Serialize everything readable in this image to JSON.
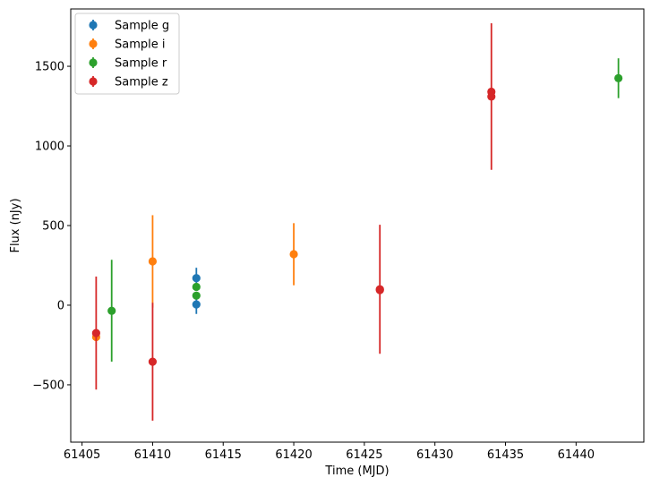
{
  "chart_data": {
    "type": "scatter",
    "xlabel": "Time (MJD)",
    "ylabel": "Flux (nJy)",
    "xlim": [
      61404.2,
      61444.8
    ],
    "ylim": [
      -860,
      1860
    ],
    "xticks": [
      61405,
      61410,
      61415,
      61420,
      61425,
      61430,
      61435,
      61440
    ],
    "xtick_labels": [
      "61405",
      "61410",
      "61415",
      "61420",
      "61425",
      "61430",
      "61435",
      "61440"
    ],
    "yticks": [
      -500,
      0,
      500,
      1000,
      1500
    ],
    "ytick_labels": [
      "−500",
      "0",
      "500",
      "1000",
      "1500"
    ],
    "legend_position": "upper-left",
    "series": [
      {
        "name": "Sample g",
        "color": "#1f77b4",
        "points": [
          {
            "x": 61413.1,
            "y": 5,
            "err": 60
          },
          {
            "x": 61413.1,
            "y": 170,
            "err": 65
          }
        ]
      },
      {
        "name": "Sample i",
        "color": "#ff7f0e",
        "points": [
          {
            "x": 61406.0,
            "y": -200,
            "err": 20
          },
          {
            "x": 61410.0,
            "y": 275,
            "err": 290
          },
          {
            "x": 61420.0,
            "y": 320,
            "err": 195
          }
        ]
      },
      {
        "name": "Sample r",
        "color": "#2ca02c",
        "points": [
          {
            "x": 61407.1,
            "y": -35,
            "err": 320
          },
          {
            "x": 61413.1,
            "y": 115,
            "err": 20
          },
          {
            "x": 61413.1,
            "y": 60,
            "err": 20
          },
          {
            "x": 61443.0,
            "y": 1425,
            "err": 125
          }
        ]
      },
      {
        "name": "Sample z",
        "color": "#d62728",
        "points": [
          {
            "x": 61406.0,
            "y": -175,
            "err": 355
          },
          {
            "x": 61410.0,
            "y": -355,
            "err": 370
          },
          {
            "x": 61426.1,
            "y": 95,
            "err": 20
          },
          {
            "x": 61426.1,
            "y": 100,
            "err": 405
          },
          {
            "x": 61434.0,
            "y": 1340,
            "err": 20
          },
          {
            "x": 61434.0,
            "y": 1310,
            "err": 460
          }
        ]
      }
    ]
  }
}
